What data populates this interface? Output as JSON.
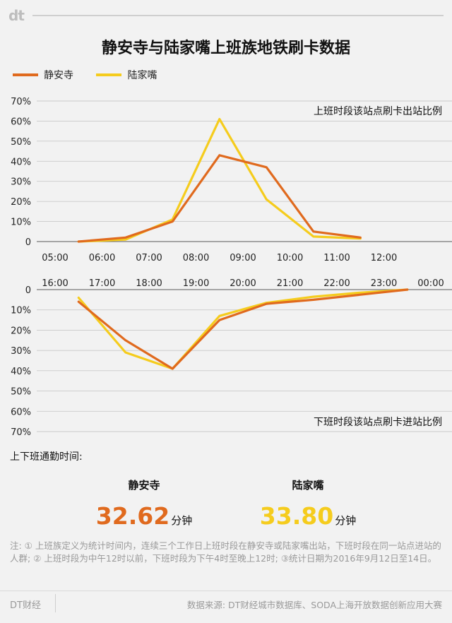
{
  "brand": {
    "logo": "dt",
    "footer_name": "DT财经"
  },
  "title": "静安寺与陆家嘴上班族地铁刷卡数据",
  "colors": {
    "jingansi": "#e06a1e",
    "lujiazui": "#f5cc1d",
    "axis": "#999999",
    "grid": "#c9c9c9"
  },
  "chart_data": [
    {
      "type": "line",
      "label": "上班时段该站点刷卡出站比例",
      "x_ticks": [
        "05:00",
        "06:00",
        "07:00",
        "08:00",
        "09:00",
        "10:00",
        "11:00",
        "12:00"
      ],
      "y_ticks": [
        "70%",
        "60%",
        "50%",
        "40%",
        "30%",
        "20%",
        "10%",
        "0"
      ],
      "ylim": [
        0,
        70
      ],
      "series": [
        {
          "name": "静安寺",
          "x": [
            5.5,
            6.5,
            7.5,
            8.5,
            9.5,
            10.5,
            11.5
          ],
          "values": [
            0,
            2,
            10,
            43,
            37,
            5,
            2
          ]
        },
        {
          "name": "陆家嘴",
          "x": [
            5.5,
            6.5,
            7.5,
            8.5,
            9.5,
            10.5,
            11.5
          ],
          "values": [
            0,
            1,
            11,
            61,
            21,
            2.5,
            1.5
          ]
        }
      ]
    },
    {
      "type": "line",
      "label": "下班时段该站点刷卡进站比例",
      "x_ticks": [
        "16:00",
        "17:00",
        "18:00",
        "19:00",
        "20:00",
        "21:00",
        "22:00",
        "23:00",
        "00:00"
      ],
      "y_ticks": [
        "0",
        "10%",
        "20%",
        "30%",
        "40%",
        "50%",
        "60%",
        "70%"
      ],
      "ylim": [
        0,
        70
      ],
      "inverted": true,
      "series": [
        {
          "name": "静安寺",
          "x": [
            16.5,
            17.5,
            18.5,
            19.5,
            20.5,
            21.5,
            22.5,
            23.5
          ],
          "values": [
            6,
            25,
            39,
            15,
            7,
            5,
            2.5,
            0
          ]
        },
        {
          "name": "陆家嘴",
          "x": [
            16.5,
            17.5,
            18.5,
            19.5,
            20.5,
            21.5,
            22.5,
            23.5
          ],
          "values": [
            4,
            31,
            39,
            13,
            6.5,
            3.5,
            1.5,
            0
          ]
        }
      ]
    }
  ],
  "legend": [
    {
      "name": "静安寺",
      "color": "#e06a1e"
    },
    {
      "name": "陆家嘴",
      "color": "#f5cc1d"
    }
  ],
  "commute": {
    "heading": "上下班通勤时间:",
    "items": [
      {
        "name": "静安寺",
        "value": "32.62",
        "unit": "分钟",
        "color": "#e06a1e"
      },
      {
        "name": "陆家嘴",
        "value": "33.80",
        "unit": "分钟",
        "color": "#f5cc1d"
      }
    ]
  },
  "note": "注: ① 上班族定义为统计时间内，连续三个工作日上班时段在静安寺或陆家嘴出站，下班时段在同一站点进站的人群; ② 上班时段为中午12时以前，下班时段为下午4时至晚上12时; ③统计日期为2016年9月12日至14日。",
  "source": "数据来源: DT财经城市数据库、SODA上海开放数据创新应用大赛"
}
